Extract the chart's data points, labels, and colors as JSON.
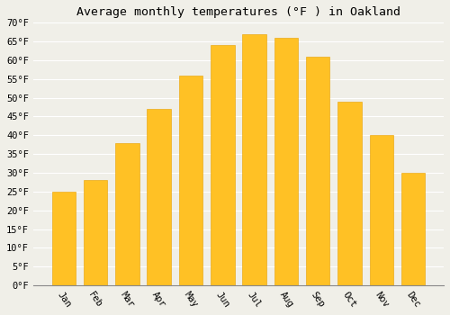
{
  "title": "Average monthly temperatures (°F ) in Oakland",
  "months": [
    "Jan",
    "Feb",
    "Mar",
    "Apr",
    "May",
    "Jun",
    "Jul",
    "Aug",
    "Sep",
    "Oct",
    "Nov",
    "Dec"
  ],
  "values": [
    25,
    28,
    38,
    47,
    56,
    64,
    67,
    66,
    61,
    49,
    40,
    30
  ],
  "bar_color": "#FFC125",
  "bar_edge_color": "#FFD060",
  "bar_edge_color2": "#E8A000",
  "background_color": "#f0efe8",
  "grid_color": "#ffffff",
  "ylim": [
    0,
    70
  ],
  "ytick_step": 5,
  "title_fontsize": 9.5,
  "tick_fontsize": 7.5,
  "font_family": "monospace"
}
